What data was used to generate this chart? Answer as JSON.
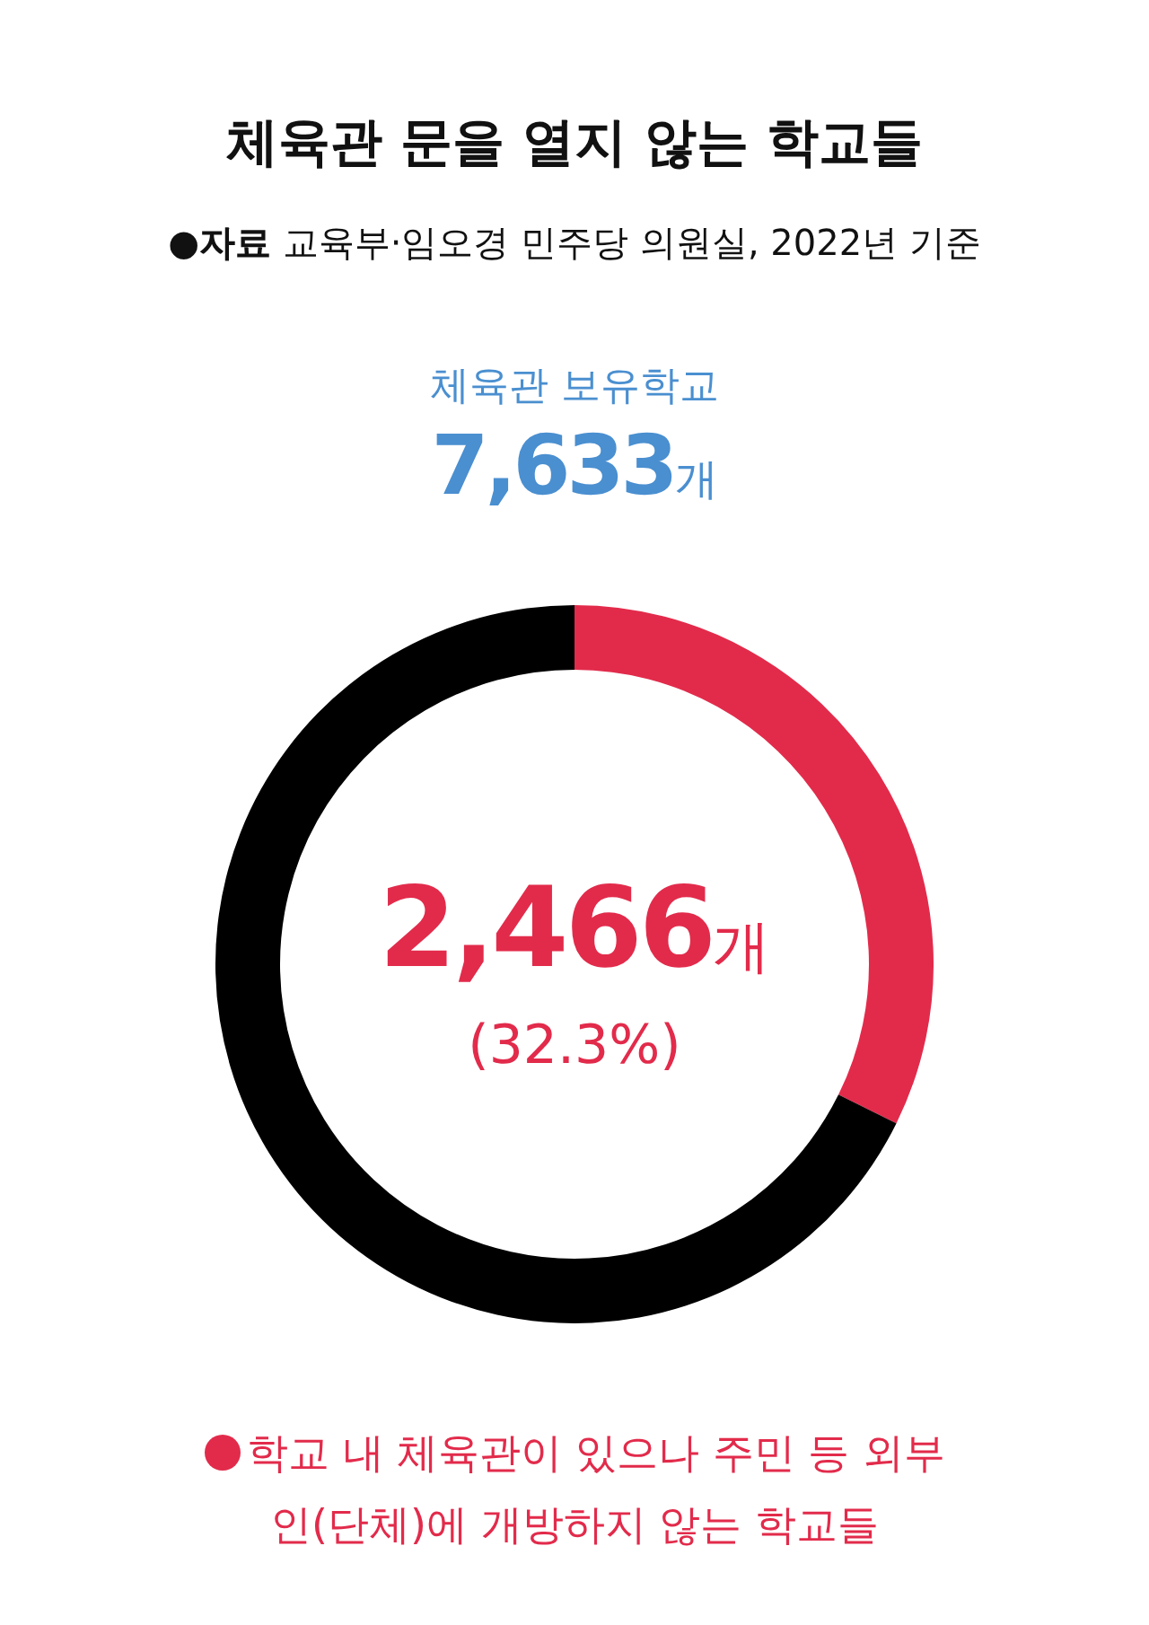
{
  "chart_data": {
    "type": "donut",
    "title": "체육관 문을 열지 않는 학교들",
    "subtitle": "●자료 교육부·임오경 민주당 의원실, 2022년 기준",
    "categories": [
      "학교 내 체육관이 있으나 주민 등 외부인(단체)에 개방하지 않는 학교들",
      null
    ],
    "values": [
      2466,
      5167
    ],
    "colors": [
      "#e22b4b",
      "#000000"
    ],
    "value_labels": [
      "2,466개",
      null
    ],
    "annotations": [
      "체육관 보유학교",
      "7,633개",
      "(32.3%)"
    ],
    "legend": "bottom"
  }
}
